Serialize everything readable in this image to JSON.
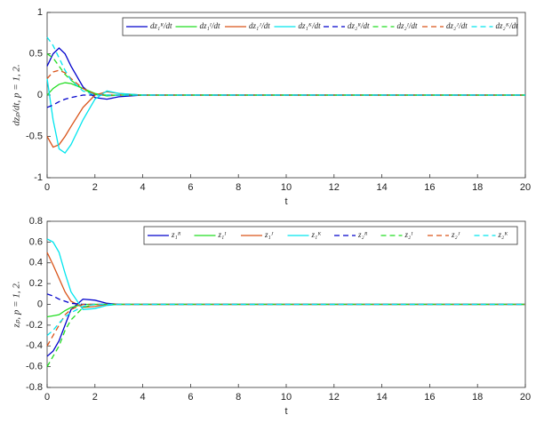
{
  "chart_data": [
    {
      "type": "line",
      "xlabel": "t",
      "ylabel": "dzₚ/dt, p = 1, 2.",
      "x": [
        0,
        0.25,
        0.5,
        0.75,
        1,
        1.5,
        2,
        2.5,
        3,
        4,
        20
      ],
      "xlim": [
        0,
        20
      ],
      "xticks": [
        0,
        2,
        4,
        6,
        8,
        10,
        12,
        14,
        16,
        18,
        20
      ],
      "ylim": [
        -1,
        1
      ],
      "yticks": [
        -1,
        -0.5,
        0,
        0.5,
        1
      ],
      "grid": false,
      "legend": "top-right",
      "series": [
        {
          "name": "dz₁ᴿ/dt",
          "color": "#0000cc",
          "dash": false,
          "values": [
            0.35,
            0.5,
            0.57,
            0.5,
            0.35,
            0.1,
            -0.03,
            -0.05,
            -0.02,
            0,
            0
          ]
        },
        {
          "name": "dz₁ᴵ/dt",
          "color": "#22dd22",
          "dash": false,
          "values": [
            0,
            0.08,
            0.13,
            0.15,
            0.14,
            0.08,
            0.02,
            -0.01,
            0,
            0,
            0
          ]
        },
        {
          "name": "dz₁ᴶ/dt",
          "color": "#d95319",
          "dash": false,
          "values": [
            -0.5,
            -0.63,
            -0.6,
            -0.5,
            -0.38,
            -0.15,
            0,
            0.04,
            0.02,
            0,
            0
          ]
        },
        {
          "name": "dz₁ᴷ/dt",
          "color": "#00e5ee",
          "dash": false,
          "values": [
            0.2,
            -0.3,
            -0.65,
            -0.7,
            -0.6,
            -0.3,
            -0.05,
            0.05,
            0.02,
            0,
            0
          ]
        },
        {
          "name": "dz₂ᴿ/dt",
          "color": "#0000cc",
          "dash": true,
          "values": [
            -0.15,
            -0.12,
            -0.08,
            -0.05,
            -0.03,
            0,
            0,
            0,
            0,
            0,
            0
          ]
        },
        {
          "name": "dz₂ᴵ/dt",
          "color": "#22dd22",
          "dash": true,
          "values": [
            0.5,
            0.45,
            0.35,
            0.25,
            0.18,
            0.07,
            0.01,
            0,
            0,
            0,
            0
          ]
        },
        {
          "name": "dz₂ᴶ/dt",
          "color": "#d95319",
          "dash": true,
          "values": [
            0.2,
            0.28,
            0.3,
            0.27,
            0.2,
            0.08,
            0.01,
            0,
            0,
            0,
            0
          ]
        },
        {
          "name": "dz₂ᴷ/dt",
          "color": "#00e5ee",
          "dash": true,
          "values": [
            0.7,
            0.6,
            0.45,
            0.3,
            0.18,
            0.05,
            0,
            0,
            0,
            0,
            0
          ]
        }
      ]
    },
    {
      "type": "line",
      "xlabel": "t",
      "ylabel": "zₚ, p = 1, 2.",
      "x": [
        0,
        0.25,
        0.5,
        0.75,
        1,
        1.5,
        2,
        2.5,
        3,
        4,
        20
      ],
      "xlim": [
        0,
        20
      ],
      "xticks": [
        0,
        2,
        4,
        6,
        8,
        10,
        12,
        14,
        16,
        18,
        20
      ],
      "ylim": [
        -0.8,
        0.8
      ],
      "yticks": [
        -0.8,
        -0.6,
        -0.4,
        -0.2,
        0,
        0.2,
        0.4,
        0.6,
        0.8
      ],
      "grid": false,
      "legend": "top-right",
      "series": [
        {
          "name": "z₁ᴿ",
          "color": "#0000cc",
          "dash": false,
          "values": [
            -0.5,
            -0.45,
            -0.35,
            -0.2,
            -0.05,
            0.05,
            0.04,
            0.01,
            0,
            0,
            0
          ]
        },
        {
          "name": "z₁ᴵ",
          "color": "#22dd22",
          "dash": false,
          "values": [
            -0.12,
            -0.11,
            -0.1,
            -0.06,
            -0.03,
            0,
            0,
            0,
            0,
            0,
            0
          ]
        },
        {
          "name": "z₁ᴶ",
          "color": "#d95319",
          "dash": false,
          "values": [
            0.5,
            0.38,
            0.25,
            0.12,
            0.03,
            -0.03,
            -0.02,
            0,
            0,
            0,
            0
          ]
        },
        {
          "name": "z₁ᴷ",
          "color": "#00e5ee",
          "dash": false,
          "values": [
            0.63,
            0.6,
            0.5,
            0.3,
            0.12,
            -0.05,
            -0.04,
            -0.01,
            0,
            0,
            0
          ]
        },
        {
          "name": "z₂ᴿ",
          "color": "#0000cc",
          "dash": true,
          "values": [
            0.1,
            0.08,
            0.05,
            0.03,
            0.01,
            0,
            0,
            0,
            0,
            0,
            0
          ]
        },
        {
          "name": "z₂ᴵ",
          "color": "#22dd22",
          "dash": true,
          "values": [
            -0.6,
            -0.5,
            -0.4,
            -0.25,
            -0.15,
            -0.03,
            0,
            0,
            0,
            0,
            0
          ]
        },
        {
          "name": "z₂ᴶ",
          "color": "#d95319",
          "dash": true,
          "values": [
            -0.4,
            -0.3,
            -0.2,
            -0.1,
            -0.05,
            0,
            0,
            0,
            0,
            0,
            0
          ]
        },
        {
          "name": "z₂ᴷ",
          "color": "#00e5ee",
          "dash": true,
          "values": [
            -0.3,
            -0.25,
            -0.18,
            -0.12,
            -0.08,
            -0.02,
            0,
            0,
            0,
            0,
            0
          ]
        }
      ]
    }
  ]
}
